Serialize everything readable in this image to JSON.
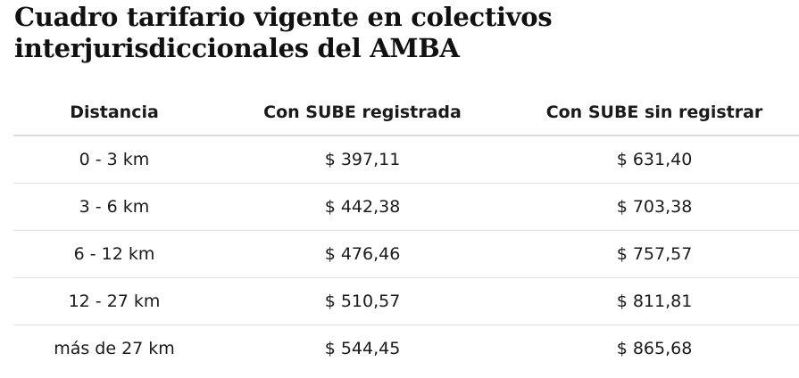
{
  "header": {
    "title": "Cuadro tarifario vigente en colectivos interjurisdiccionales del AMBA"
  },
  "table": {
    "columns": [
      "Distancia",
      "Con SUBE registrada",
      "Con SUBE sin registrar"
    ],
    "rows": [
      [
        "0 - 3 km",
        "$ 397,11",
        "$ 631,40"
      ],
      [
        "3 - 6 km",
        "$ 442,38",
        "$ 703,38"
      ],
      [
        "6 - 12 km",
        "$ 476,46",
        "$ 757,57"
      ],
      [
        "12 - 27 km",
        "$ 510,57",
        "$ 811,81"
      ],
      [
        "más de 27 km",
        "$ 544,45",
        "$ 865,68"
      ]
    ]
  }
}
